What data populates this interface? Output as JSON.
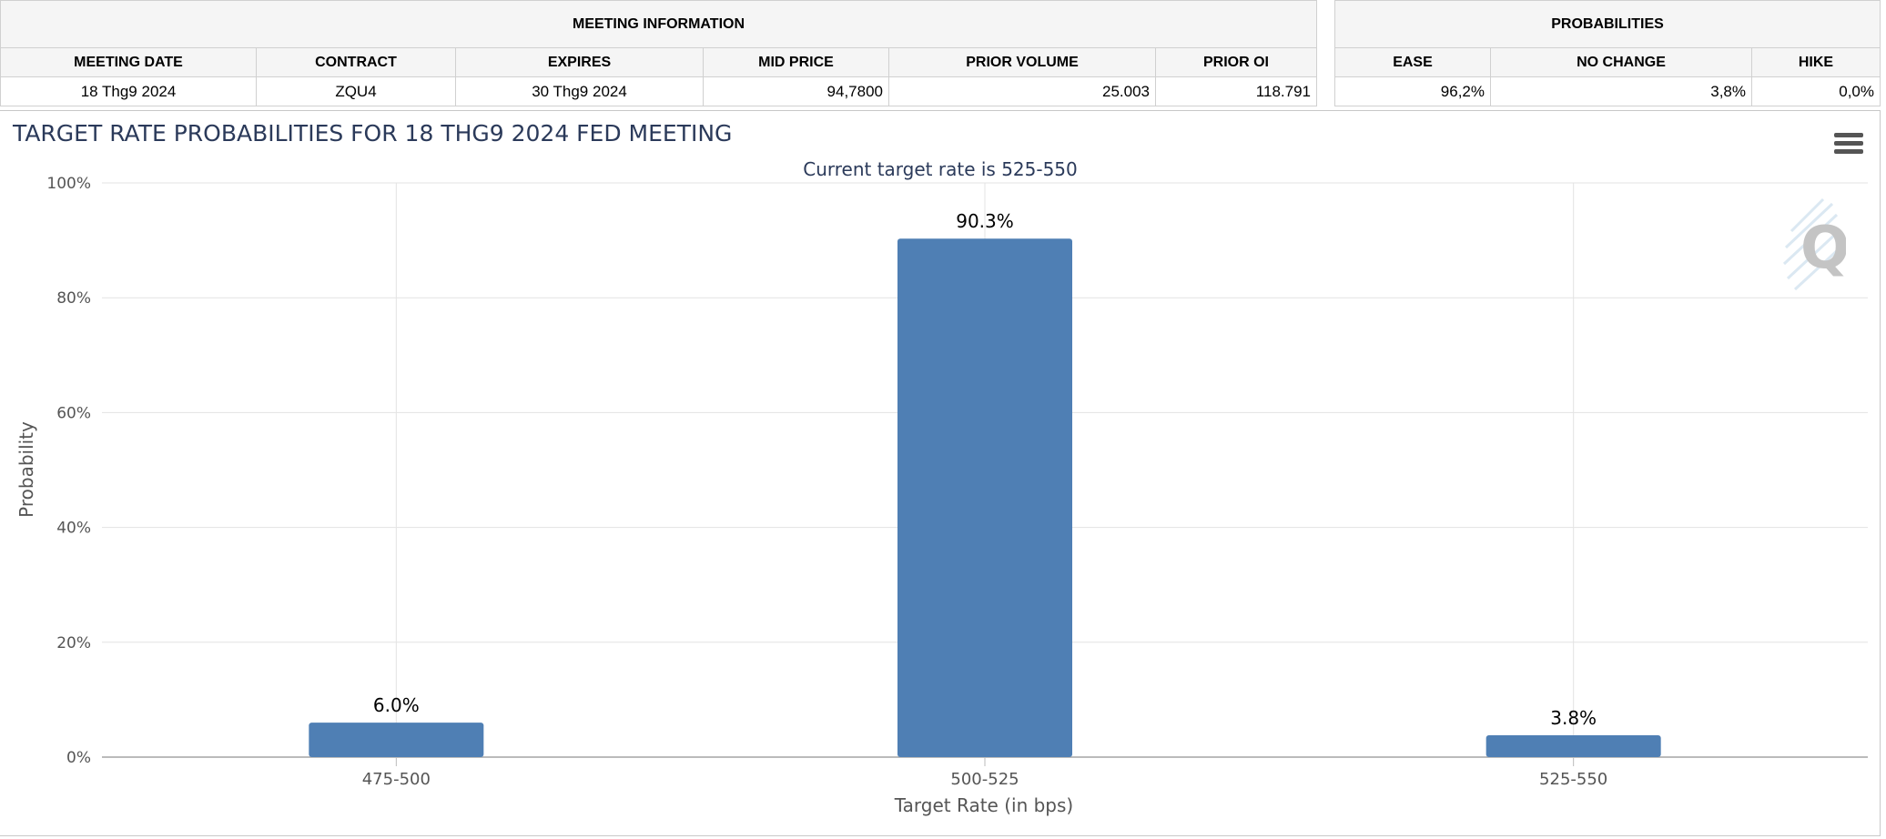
{
  "meeting_info": {
    "title": "MEETING INFORMATION",
    "headers": [
      "MEETING DATE",
      "CONTRACT",
      "EXPIRES",
      "MID PRICE",
      "PRIOR VOLUME",
      "PRIOR OI"
    ],
    "values": [
      "18 Thg9 2024",
      "ZQU4",
      "30 Thg9 2024",
      "94,7800",
      "25.003",
      "118.791"
    ]
  },
  "probabilities": {
    "title": "PROBABILITIES",
    "headers": [
      "EASE",
      "NO CHANGE",
      "HIKE"
    ],
    "values": [
      "96,2%",
      "3,8%",
      "0,0%"
    ]
  },
  "chart_data": {
    "type": "bar",
    "title": "TARGET RATE PROBABILITIES FOR 18 THG9 2024 FED MEETING",
    "subtitle": "Current target rate is 525-550",
    "categories": [
      "475-500",
      "500-525",
      "525-550"
    ],
    "values": [
      6.0,
      90.3,
      3.8
    ],
    "data_labels": [
      "6.0%",
      "90.3%",
      "3.8%"
    ],
    "xlabel": "Target Rate (in bps)",
    "ylabel": "Probability",
    "ylim": [
      0,
      100
    ],
    "yticks": [
      "0%",
      "20%",
      "40%",
      "60%",
      "80%",
      "100%"
    ],
    "bar_color": "#4f7fb4",
    "title_color": "#2b3a5a",
    "grid": true
  },
  "icons": {
    "menu": "hamburger-menu-icon",
    "logo": "q-logo-icon"
  }
}
